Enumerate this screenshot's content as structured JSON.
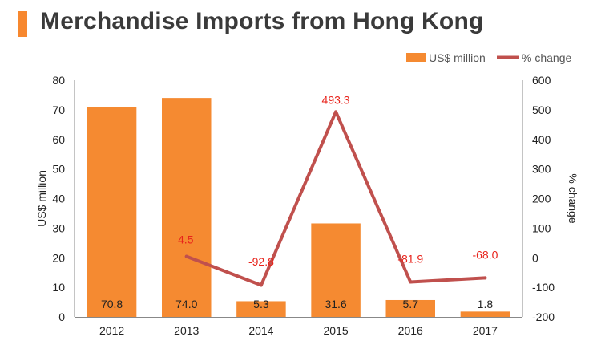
{
  "title": "Merchandise Imports from Hong Kong",
  "colors": {
    "accent": "#f7882f",
    "bar": "#f58a31",
    "line": "#c0504d",
    "line_label": "#e8231b"
  },
  "chart_data": {
    "type": "bar",
    "categories": [
      "2012",
      "2013",
      "2014",
      "2015",
      "2016",
      "2017"
    ],
    "series": [
      {
        "name": "US$ million",
        "type": "bar",
        "axis": "left",
        "values": [
          70.8,
          74.0,
          5.3,
          31.6,
          5.7,
          1.8
        ],
        "labels": [
          "70.8",
          "74.0",
          "5.3",
          "31.6",
          "5.7",
          "1.8"
        ]
      },
      {
        "name": "% change",
        "type": "line",
        "axis": "right",
        "values": [
          null,
          4.5,
          -92.8,
          493.3,
          -81.9,
          -68.0
        ],
        "labels": [
          "",
          "4.5",
          "-92.8",
          "493.3",
          "-81.9",
          "-68.0"
        ]
      }
    ],
    "ylabel": "US$ million",
    "y2label": "% change",
    "ylim": [
      0,
      80
    ],
    "y2lim": [
      -200,
      600
    ],
    "yticks": [
      "0",
      "10",
      "20",
      "30",
      "40",
      "50",
      "60",
      "70",
      "80"
    ],
    "y2ticks": [
      "-200",
      "-100",
      "0",
      "100",
      "200",
      "300",
      "400",
      "500",
      "600"
    ],
    "legend": "top-right",
    "grid": false
  }
}
